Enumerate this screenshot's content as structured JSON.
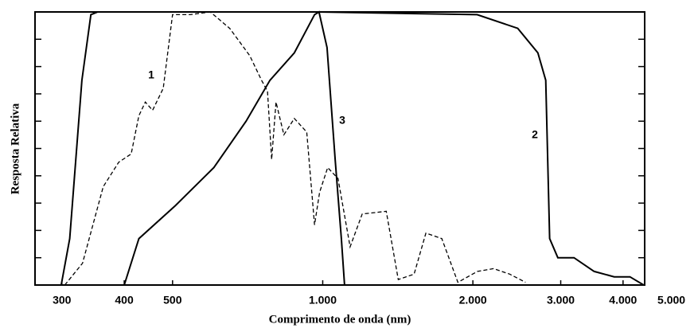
{
  "chart_data": {
    "type": "line",
    "x_label": "Comprimento de onda (nm)",
    "y_label": "Resposta Relativa",
    "log_x": true,
    "xlim": [
      265,
      4420
    ],
    "xticks": [
      300,
      400,
      500,
      {
        "value": 1000,
        "label": "1.000"
      },
      {
        "value": 2000,
        "label": "2.000"
      },
      {
        "value": 3000,
        "label": "3.000"
      },
      {
        "value": 4000,
        "label": "4.000"
      },
      {
        "value": 5000,
        "label": "5.000"
      }
    ],
    "ylim": [
      0,
      100
    ],
    "yticks": [
      0,
      10,
      20,
      30,
      40,
      50,
      60,
      70,
      80,
      90,
      100
    ],
    "series": [
      {
        "name": "1",
        "color": "#000000",
        "dashed": true,
        "x": [
          304,
          330,
          363,
          390,
          413,
          428,
          441,
          456,
          479,
          500,
          542,
          595,
          651,
          714,
          754,
          775,
          790,
          806,
          836,
          877,
          929,
          963,
          986,
          1023,
          1073,
          1135,
          1200,
          1341,
          1417,
          1525,
          1610,
          1733,
          1866,
          2043,
          2200,
          2370,
          2550
        ],
        "values": [
          0,
          8,
          36,
          45,
          48,
          62,
          67,
          64,
          72,
          99,
          99,
          100,
          94,
          84,
          75,
          71,
          46,
          67,
          55,
          61,
          56,
          22,
          34,
          43,
          39,
          14,
          26,
          27,
          2,
          4,
          19,
          17,
          1,
          5,
          6,
          4,
          1
        ]
      },
      {
        "name": "2",
        "color": "#000000",
        "dashed": false,
        "x": [
          299,
          311,
          329,
          343,
          354,
          983,
          2040,
          2460,
          2700,
          2800,
          2850,
          2960,
          3190,
          3500,
          3840,
          4130,
          4400
        ],
        "values": [
          0,
          17,
          75,
          99,
          100,
          100,
          99,
          94,
          85,
          75,
          17,
          10,
          10,
          5,
          3,
          3,
          0
        ]
      },
      {
        "name": "3",
        "color": "#000000",
        "dashed": false,
        "x": [
          400,
          428,
          506,
          605,
          702,
          784,
          877,
          963,
          983,
          1020,
          1059,
          1090,
          1106
        ],
        "values": [
          0,
          17,
          29,
          43,
          60,
          75,
          85,
          99,
          100,
          87,
          46,
          17,
          0
        ]
      }
    ]
  }
}
